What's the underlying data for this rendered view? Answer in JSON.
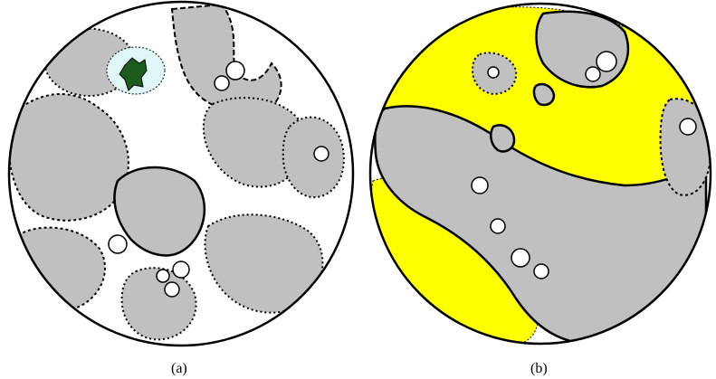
{
  "panels": [
    {
      "id": "a",
      "caption": "(a)"
    },
    {
      "id": "b",
      "caption": "(b)"
    }
  ],
  "colors": {
    "grain_fill": "#c0c0c0",
    "highlight_yellow": "#ffff00",
    "highlight_dark_green": "#1e5c1e",
    "highlight_light_cyan": "#dff7f7",
    "boundary": "#000000",
    "background": "#ffffff"
  }
}
